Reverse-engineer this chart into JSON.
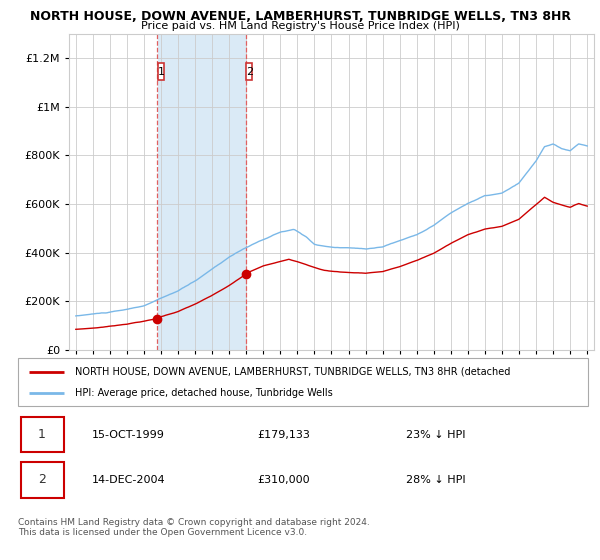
{
  "title": "NORTH HOUSE, DOWN AVENUE, LAMBERHURST, TUNBRIDGE WELLS, TN3 8HR",
  "subtitle": "Price paid vs. HM Land Registry's House Price Index (HPI)",
  "legend_label1": "NORTH HOUSE, DOWN AVENUE, LAMBERHURST, TUNBRIDGE WELLS, TN3 8HR (detached",
  "legend_label2": "HPI: Average price, detached house, Tunbridge Wells",
  "sale1_date": "15-OCT-1999",
  "sale1_price": 179133,
  "sale1_pct": "23% ↓ HPI",
  "sale2_date": "14-DEC-2004",
  "sale2_price": 310000,
  "sale2_pct": "28% ↓ HPI",
  "hpi_color": "#7ab8e8",
  "property_color": "#cc0000",
  "vline_color": "#e06060",
  "shaded_color": "#daeaf6",
  "background_color": "#ffffff",
  "grid_color": "#cccccc",
  "ylim": [
    0,
    1300000
  ],
  "yticks": [
    0,
    200000,
    400000,
    600000,
    800000,
    1000000,
    1200000
  ],
  "sale1_x": 1999.79,
  "sale2_x": 2004.96,
  "footnote": "Contains HM Land Registry data © Crown copyright and database right 2024.\nThis data is licensed under the Open Government Licence v3.0."
}
